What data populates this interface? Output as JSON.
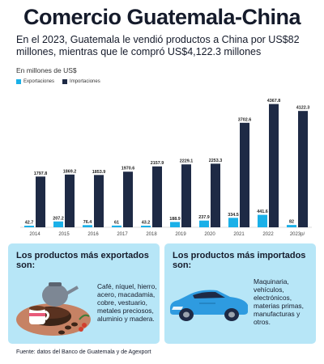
{
  "header": {
    "title": "Comercio Guatemala-China",
    "subtitle": "En el 2023, Guatemala le vendió productos a China por US$82 millones, mientras que le compró US$4,122.3 millones",
    "unit": "En millones de US$"
  },
  "legend": {
    "exports_label": "Exportaciones",
    "imports_label": "Importaciones"
  },
  "colors": {
    "exports": "#1ab0e8",
    "imports": "#1e2a45",
    "card_bg": "#b7e6f7"
  },
  "chart_data": {
    "type": "bar",
    "categories": [
      "2014",
      "2015",
      "2016",
      "2017",
      "2018",
      "2019",
      "2020",
      "2021",
      "2022",
      "2023p/"
    ],
    "series": [
      {
        "name": "Exportaciones",
        "values": [
          42.7,
          207.2,
          76.4,
          61,
          43.2,
          188.9,
          237.9,
          334.5,
          441.6,
          82
        ],
        "labels": [
          "42.7",
          "207.2",
          "76.4",
          "61",
          "43.2",
          "188.9",
          "237.9",
          "334.5",
          "441.6",
          "82"
        ]
      },
      {
        "name": "Importaciones",
        "values": [
          1797.8,
          1869.2,
          1853.9,
          1970.6,
          2157.9,
          2229.1,
          2253.3,
          3702.6,
          4367.8,
          4122.3
        ],
        "labels": [
          "1797.8",
          "1869.2",
          "1853.9",
          "1970.6",
          "2157.9",
          "2229.1",
          "2253.3",
          "3702.6",
          "4367.8",
          "4122.3"
        ]
      }
    ],
    "ylim": [
      0,
      4500
    ],
    "grid": false,
    "legend_position": "top-left"
  },
  "cards": {
    "exports": {
      "title": "Los productos más exportados son:",
      "text": "Café, níquel, hierro, acero, macadamia, cobre, vestuario, metales preciosos, aluminio y madera."
    },
    "imports": {
      "title": "Los productos más importados son:",
      "text": "Maquinaria, vehículos, electrónicos, materias primas, manufacturas y otros."
    }
  },
  "footer": {
    "source": "Fuente: datos del Banco de Guatemala y de Agexport"
  }
}
